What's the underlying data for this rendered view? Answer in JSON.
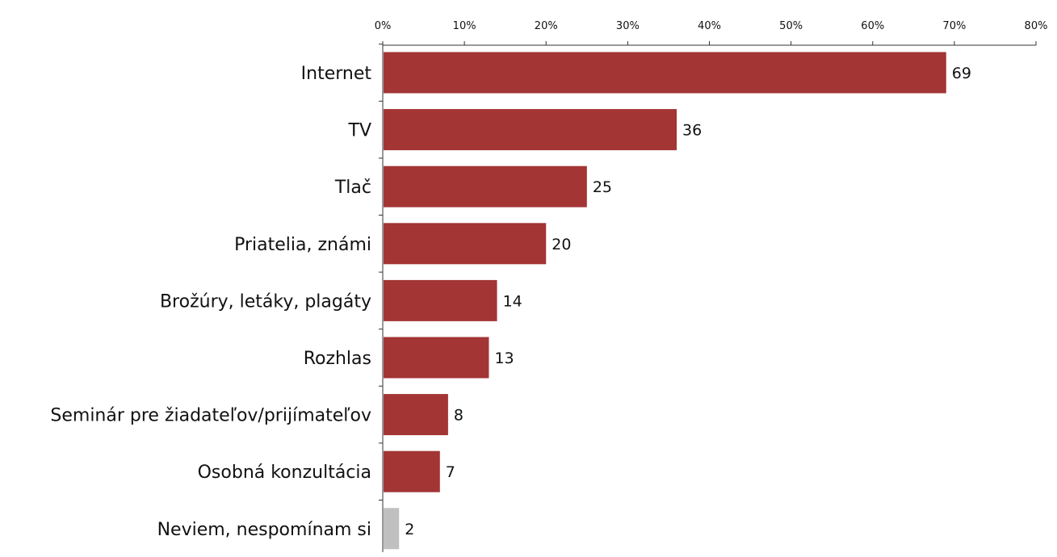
{
  "chart_data": {
    "type": "bar",
    "orientation": "horizontal",
    "title": "",
    "xlabel": "",
    "ylabel": "",
    "xlim": [
      0,
      80
    ],
    "xticks": [
      "0%",
      "10%",
      "20%",
      "30%",
      "40%",
      "50%",
      "60%",
      "70%",
      "80%"
    ],
    "axis_position": "top",
    "grid": false,
    "legend": "none",
    "categories": [
      "Internet",
      "TV",
      "Tlač",
      "Priatelia, známi",
      "Brožúry, letáky, plagáty",
      "Rozhlas",
      "Seminár pre žiadateľov/prijímateľov",
      "Osobná konzultácia",
      "Neviem, nespomínam si"
    ],
    "values": [
      69,
      36,
      25,
      20,
      14,
      13,
      8,
      7,
      2
    ],
    "data_labels": [
      "69",
      "36",
      "25",
      "20",
      "14",
      "13",
      "8",
      "7",
      "2"
    ],
    "bar_colors": [
      "#a33535",
      "#a33535",
      "#a33535",
      "#a33535",
      "#a33535",
      "#a33535",
      "#a33535",
      "#a33535",
      "#c0c0c0"
    ]
  }
}
